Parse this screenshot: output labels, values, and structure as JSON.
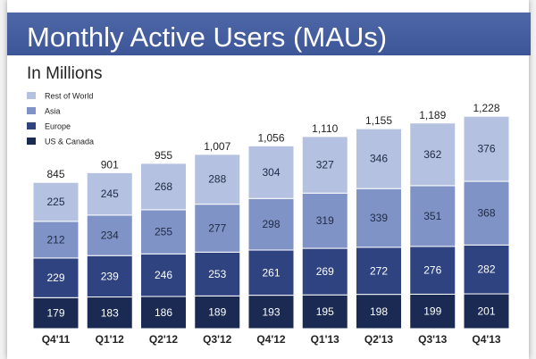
{
  "chart_data": {
    "type": "bar",
    "stacked": true,
    "title": "Monthly Active Users (MAUs)",
    "subtitle": "In Millions",
    "categories": [
      "Q4'11",
      "Q1'12",
      "Q2'12",
      "Q3'12",
      "Q4'12",
      "Q1'13",
      "Q2'13",
      "Q3'13",
      "Q4'13"
    ],
    "series": [
      {
        "name": "US & Canada",
        "color": "#1a2a52",
        "label_color": "#ffffff",
        "values": [
          179,
          183,
          186,
          189,
          193,
          195,
          198,
          199,
          201
        ]
      },
      {
        "name": "Europe",
        "color": "#2e4380",
        "label_color": "#ffffff",
        "values": [
          229,
          239,
          246,
          253,
          261,
          269,
          272,
          276,
          282
        ]
      },
      {
        "name": "Asia",
        "color": "#7f93c6",
        "label_color": "#1f2a44",
        "values": [
          212,
          234,
          255,
          277,
          298,
          319,
          339,
          351,
          368
        ]
      },
      {
        "name": "Rest of World",
        "color": "#b4c1e0",
        "label_color": "#1f2a44",
        "values": [
          225,
          245,
          268,
          288,
          304,
          327,
          346,
          362,
          376
        ]
      }
    ],
    "totals": [
      "845",
      "901",
      "955",
      "1,007",
      "1,056",
      "1,110",
      "1,155",
      "1,189",
      "1,228"
    ],
    "legend": [
      "Rest of World",
      "Asia",
      "Europe",
      "US & Canada"
    ],
    "legend_position": "top-left",
    "ylim": [
      0,
      1228
    ],
    "grid": false
  },
  "theme": {
    "banner_color": "#4a62a3",
    "title_color": "#ffffff"
  }
}
